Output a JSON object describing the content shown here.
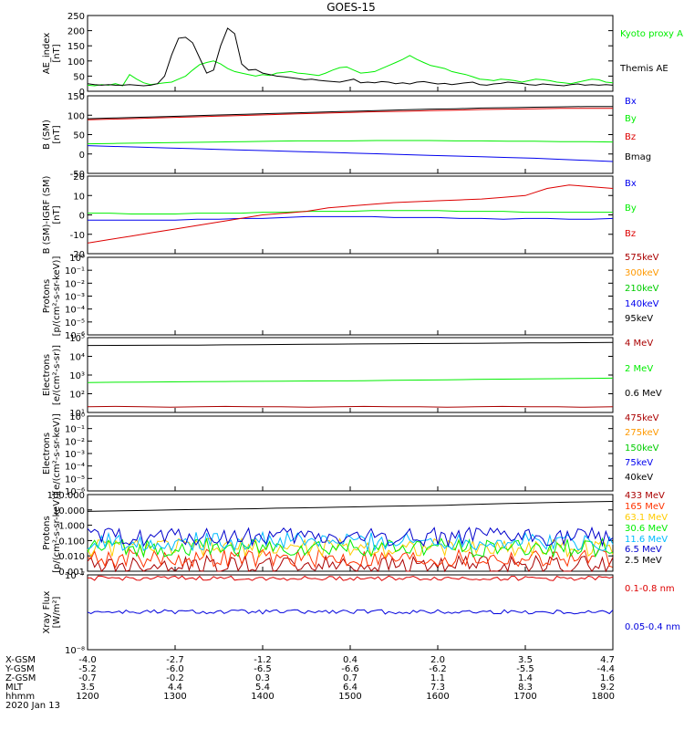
{
  "title": "GOES-15",
  "date": "2020 Jan 13",
  "chart_data": [
    {
      "type": "line",
      "id": "ae",
      "ylabel": [
        "AE_index",
        "[nT]"
      ],
      "ylim": [
        0,
        250
      ],
      "yticks": [
        "0",
        "50",
        "100",
        "150",
        "200",
        "250"
      ],
      "series": [
        {
          "name": "Kyoto proxy AE",
          "color": "#00ee00",
          "values": [
            20,
            18,
            22,
            20,
            25,
            18,
            55,
            40,
            28,
            22,
            25,
            28,
            30,
            40,
            50,
            70,
            88,
            95,
            100,
            90,
            75,
            65,
            60,
            55,
            50,
            55,
            52,
            60,
            62,
            65,
            60,
            58,
            55,
            52,
            60,
            70,
            78,
            80,
            70,
            60,
            62,
            65,
            75,
            85,
            95,
            105,
            118,
            105,
            95,
            85,
            80,
            75,
            65,
            60,
            55,
            48,
            40,
            38,
            35,
            40,
            38,
            35,
            30,
            35,
            40,
            38,
            35,
            30,
            28,
            25,
            30,
            35,
            40,
            38,
            30,
            28
          ]
        },
        {
          "name": "Themis AE",
          "color": "#000000",
          "values": [
            25,
            22,
            20,
            22,
            20,
            20,
            22,
            20,
            18,
            20,
            25,
            50,
            120,
            175,
            178,
            160,
            110,
            60,
            70,
            150,
            208,
            190,
            90,
            70,
            72,
            60,
            55,
            50,
            48,
            45,
            42,
            38,
            40,
            36,
            34,
            32,
            30,
            35,
            40,
            28,
            30,
            28,
            32,
            30,
            25,
            28,
            24,
            30,
            32,
            28,
            24,
            26,
            22,
            25,
            28,
            30,
            22,
            20,
            24,
            26,
            30,
            28,
            26,
            22,
            20,
            24,
            22,
            20,
            18,
            22,
            24,
            20,
            22,
            20,
            22,
            20
          ]
        }
      ]
    },
    {
      "type": "line",
      "id": "b-sm",
      "ylabel": [
        "B (SM)",
        "[nT]"
      ],
      "ylim": [
        -60,
        150
      ],
      "yticks": [
        "-50",
        "0",
        "50",
        "100",
        "150"
      ],
      "series": [
        {
          "name": "Bx",
          "color": "#0000ee",
          "values": [
            15,
            13,
            11,
            9,
            7,
            5,
            3,
            1,
            -1,
            -3,
            -5,
            -7,
            -9,
            -11,
            -13,
            -15,
            -17,
            -19,
            -22,
            -25,
            -28
          ]
        },
        {
          "name": "By",
          "color": "#00ee00",
          "values": [
            20,
            21,
            22,
            23,
            24,
            25,
            26,
            27,
            28,
            28,
            28,
            29,
            29,
            29,
            28,
            28,
            27,
            27,
            26,
            26,
            25
          ]
        },
        {
          "name": "Bz",
          "color": "#dd0000",
          "values": [
            85,
            87,
            89,
            91,
            93,
            95,
            97,
            99,
            101,
            103,
            105,
            107,
            108,
            110,
            111,
            113,
            114,
            115,
            116,
            116,
            116
          ]
        },
        {
          "name": "Bmag",
          "color": "#000000",
          "values": [
            88,
            90,
            92,
            94,
            96,
            98,
            100,
            102,
            104,
            106,
            108,
            110,
            112,
            114,
            115,
            117,
            118,
            119,
            120,
            121,
            121
          ]
        }
      ]
    },
    {
      "type": "line",
      "id": "b-sm-igrf",
      "ylabel": [
        "B (SM)-IGRF (SM)",
        "[nT]"
      ],
      "ylim": [
        -22,
        22
      ],
      "yticks": [
        "-20",
        "-10",
        "0",
        "10",
        "20"
      ],
      "series": [
        {
          "name": "Bx",
          "color": "#0000ee",
          "values": [
            -3,
            -3,
            -3,
            -3,
            -3,
            -2.5,
            -2.5,
            -2,
            -2,
            -1.5,
            -1,
            -1,
            -1,
            -1,
            -1.5,
            -1.5,
            -1.5,
            -2,
            -2,
            -2.5,
            -2,
            -2,
            -2.5,
            -2.5,
            -2
          ]
        },
        {
          "name": "By",
          "color": "#00ee00",
          "values": [
            1,
            1,
            0.5,
            0.5,
            0.5,
            1,
            1,
            1,
            1.5,
            1.5,
            2,
            2,
            2,
            2.5,
            2.5,
            2.5,
            2.5,
            2,
            2,
            2,
            1.5,
            1.5,
            1.5,
            1.5,
            1.5
          ]
        },
        {
          "name": "Bz",
          "color": "#dd0000",
          "values": [
            -16,
            -14,
            -12,
            -10,
            -8,
            -6,
            -4,
            -2,
            0,
            1,
            2,
            4,
            5,
            6,
            7,
            7.5,
            8,
            8.5,
            9,
            10,
            11,
            15,
            17,
            16,
            15
          ]
        }
      ]
    },
    {
      "type": "line",
      "id": "protons-low",
      "ylabel": [
        "Protons",
        "[p/(cm²-s-sr-keV)]"
      ],
      "yticks": [
        "10⁻⁶",
        "10⁻⁵",
        "10⁻⁴",
        "10⁻³",
        "10⁻²",
        "10⁻¹",
        "10⁰"
      ],
      "series": [
        {
          "name": "575keV",
          "color": "#aa0000",
          "values": []
        },
        {
          "name": "300keV",
          "color": "#ff9900",
          "values": []
        },
        {
          "name": "210keV",
          "color": "#00cc00",
          "values": []
        },
        {
          "name": "140keV",
          "color": "#0000ee",
          "values": []
        },
        {
          "name": "95keV",
          "color": "#000000",
          "values": []
        }
      ]
    },
    {
      "type": "line",
      "id": "electrons-high",
      "ylabel": [
        "Electrons",
        "[e/(cm²-s-sr)]"
      ],
      "yticks": [
        "10¹",
        "10²",
        "10³",
        "10⁴",
        "10⁵"
      ],
      "series": [
        {
          "name": "4 MeV",
          "color": "#aa0000",
          "values": [
            20,
            21,
            20,
            19,
            20,
            21,
            20,
            20,
            19,
            20,
            21,
            20,
            20,
            19,
            20,
            21,
            20,
            20,
            19,
            20
          ]
        },
        {
          "name": "2 MeV",
          "color": "#00ee00",
          "values": [
            400,
            410,
            420,
            430,
            440,
            450,
            460,
            470,
            480,
            490,
            500,
            520,
            540,
            560,
            580,
            600,
            620,
            640,
            660,
            680
          ]
        },
        {
          "name": "0.6 MeV",
          "color": "#000000",
          "values": [
            38000,
            38500,
            39000,
            39500,
            40000,
            41000,
            42000,
            43000,
            44000,
            45000,
            46000,
            47000,
            48000,
            49000,
            50000,
            51000,
            52000,
            53000,
            54000,
            55000
          ]
        }
      ]
    },
    {
      "type": "line",
      "id": "electrons-low",
      "ylabel": [
        "Electrons",
        "[e/(cm²-s-sr-keV)]"
      ],
      "yticks": [
        "10⁻⁶",
        "10⁻⁵",
        "10⁻⁴",
        "10⁻³",
        "10⁻²",
        "10⁻¹",
        "10⁰"
      ],
      "series": [
        {
          "name": "475keV",
          "color": "#aa0000",
          "values": []
        },
        {
          "name": "275keV",
          "color": "#ff9900",
          "values": []
        },
        {
          "name": "150keV",
          "color": "#00cc00",
          "values": []
        },
        {
          "name": "75keV",
          "color": "#0000ee",
          "values": []
        },
        {
          "name": "40keV",
          "color": "#000000",
          "values": []
        }
      ]
    },
    {
      "type": "line",
      "id": "protons-high",
      "ylabel": [
        "Protons",
        "[p/(cm²-s-sr-keV)]"
      ],
      "yticks": [
        "0.001",
        "0.010",
        "0.100",
        "1.000",
        "10.000",
        "100.000"
      ],
      "series": [
        {
          "name": "433 MeV",
          "color": "#aa0000",
          "level": 0.0015
        },
        {
          "name": "165 MeV",
          "color": "#ff3300",
          "level": 0.004
        },
        {
          "name": "63.1 MeV",
          "color": "#ffcc00",
          "level": 0.02
        },
        {
          "name": "30.6 MeV",
          "color": "#00ee00",
          "level": 0.02
        },
        {
          "name": "11.6 MeV",
          "color": "#00bbff",
          "level": 0.05
        },
        {
          "name": "6.5 MeV",
          "color": "#0000cc",
          "level": 0.1
        },
        {
          "name": "2.5 MeV",
          "color": "#000000",
          "values": [
            8,
            8.5,
            9,
            9.5,
            10,
            10.5,
            11,
            11.5,
            12,
            13,
            13.5,
            14,
            15,
            16,
            17,
            18,
            19,
            20,
            22,
            24,
            26,
            28,
            30,
            32,
            34,
            36
          ]
        }
      ]
    },
    {
      "type": "line",
      "id": "xray",
      "ylabel": [
        "Xray Flux",
        "[W/m²]"
      ],
      "yticks": [
        "10⁻⁸",
        "10⁻⁷"
      ],
      "series": [
        {
          "name": "0.1-0.8 nm",
          "color": "#dd0000",
          "level": 9e-08
        },
        {
          "name": "0.05-0.4 nm",
          "color": "#0000dd",
          "level": 3.2e-08
        }
      ]
    }
  ],
  "x_axis": {
    "row_labels": [
      "X-GSM",
      "Y-GSM",
      "Z-GSM",
      "MLT",
      "hhmm"
    ],
    "columns": [
      [
        "-4.0",
        "-5.2",
        "-0.7",
        "3.5",
        "1200"
      ],
      [
        "-2.7",
        "-6.0",
        "-0.2",
        "4.4",
        "1300"
      ],
      [
        "-1.2",
        "-6.5",
        "0.3",
        "5.4",
        "1400"
      ],
      [
        "0.4",
        "-6.6",
        "0.7",
        "6.4",
        "1500"
      ],
      [
        "2.0",
        "-6.2",
        "1.1",
        "7.3",
        "1600"
      ],
      [
        "3.5",
        "-5.5",
        "1.4",
        "8.3",
        "1700"
      ],
      [
        "4.7",
        "-4.4",
        "1.6",
        "9.2",
        "1800"
      ]
    ]
  }
}
